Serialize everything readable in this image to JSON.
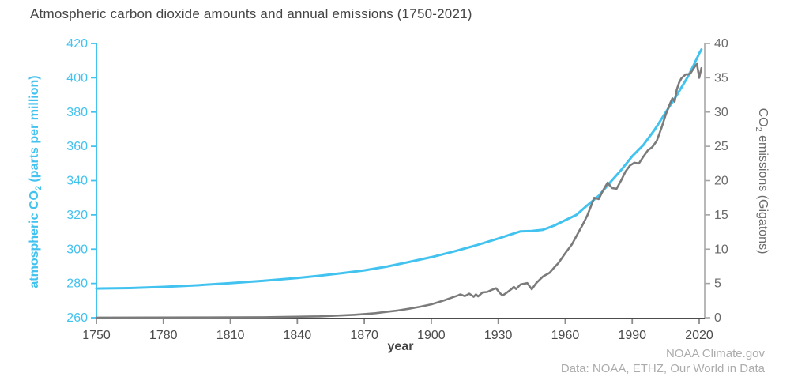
{
  "attribution": {
    "line1": "NOAA Climate.gov",
    "line2": "Data: NOAA, ETHZ, Our World in Data"
  },
  "colors": {
    "blue": "#41c2ef",
    "gray_line": "#7b7b7b",
    "title": "#454545",
    "x_spine": "#4c4c4c",
    "x_tick": "#8c8c8c",
    "x_tick_label": "#4b4b4b",
    "right_spine": "#a6a6a6",
    "right_tick_label": "#6a6a6a",
    "attribution": "#acacac"
  },
  "chart_data": {
    "type": "line",
    "title": "Atmospheric carbon dioxide amounts and annual emissions (1750-2021)",
    "xlabel": "year",
    "grid": false,
    "legend": "none",
    "x_ticks": [
      1750,
      1780,
      1810,
      1840,
      1870,
      1900,
      1930,
      1960,
      1990,
      2020
    ],
    "x_tick_range": [
      1750,
      2020
    ],
    "x_range": [
      1750,
      2021
    ],
    "left_axis": {
      "label_pre": "atmospheric CO",
      "label_sub": "2",
      "label_post": " (parts per million)",
      "ticks": [
        260,
        280,
        300,
        320,
        340,
        360,
        380,
        400,
        420
      ],
      "range": [
        260,
        420
      ],
      "color": "#41c2ef"
    },
    "right_axis": {
      "label_pre": "CO",
      "label_sub": "2",
      "label_post": " emissions (Gigatons)",
      "ticks": [
        0,
        5,
        10,
        15,
        20,
        25,
        30,
        35,
        40
      ],
      "range": [
        0,
        40
      ],
      "color": "#6a6a6a"
    },
    "series": [
      {
        "id": "atmospheric-co2",
        "name": "atmospheric CO2 (parts per million)",
        "axis": "left",
        "color": "#41c2ef",
        "points": [
          [
            1750,
            277.0
          ],
          [
            1765,
            277.3
          ],
          [
            1780,
            278.0
          ],
          [
            1795,
            278.9
          ],
          [
            1810,
            280.2
          ],
          [
            1825,
            281.6
          ],
          [
            1840,
            283.2
          ],
          [
            1850,
            284.5
          ],
          [
            1860,
            286.0
          ],
          [
            1870,
            287.6
          ],
          [
            1880,
            289.8
          ],
          [
            1890,
            292.5
          ],
          [
            1900,
            295.3
          ],
          [
            1910,
            298.6
          ],
          [
            1920,
            302.2
          ],
          [
            1930,
            306.2
          ],
          [
            1935,
            308.3
          ],
          [
            1940,
            310.4
          ],
          [
            1945,
            310.6
          ],
          [
            1950,
            311.3
          ],
          [
            1955,
            313.7
          ],
          [
            1960,
            316.9
          ],
          [
            1965,
            320.0
          ],
          [
            1970,
            325.7
          ],
          [
            1975,
            331.1
          ],
          [
            1980,
            338.8
          ],
          [
            1985,
            346.1
          ],
          [
            1990,
            354.2
          ],
          [
            1995,
            360.8
          ],
          [
            2000,
            369.6
          ],
          [
            2005,
            379.8
          ],
          [
            2010,
            389.9
          ],
          [
            2015,
            400.8
          ],
          [
            2018,
            408.5
          ],
          [
            2020,
            414.2
          ],
          [
            2021,
            416.5
          ]
        ]
      },
      {
        "id": "co2-emissions",
        "name": "CO2 emissions (Gigatons)",
        "axis": "right",
        "color": "#7b7b7b",
        "points": [
          [
            1750,
            0.01
          ],
          [
            1775,
            0.02
          ],
          [
            1800,
            0.03
          ],
          [
            1825,
            0.07
          ],
          [
            1850,
            0.2
          ],
          [
            1860,
            0.34
          ],
          [
            1865,
            0.42
          ],
          [
            1870,
            0.53
          ],
          [
            1875,
            0.66
          ],
          [
            1880,
            0.85
          ],
          [
            1885,
            1.05
          ],
          [
            1890,
            1.3
          ],
          [
            1895,
            1.6
          ],
          [
            1900,
            1.95
          ],
          [
            1903,
            2.25
          ],
          [
            1906,
            2.55
          ],
          [
            1909,
            2.9
          ],
          [
            1912,
            3.25
          ],
          [
            1913,
            3.4
          ],
          [
            1915,
            3.15
          ],
          [
            1917,
            3.5
          ],
          [
            1919,
            3.05
          ],
          [
            1920,
            3.4
          ],
          [
            1921,
            3.1
          ],
          [
            1923,
            3.7
          ],
          [
            1925,
            3.75
          ],
          [
            1927,
            4.05
          ],
          [
            1929,
            4.3
          ],
          [
            1931,
            3.5
          ],
          [
            1932,
            3.25
          ],
          [
            1934,
            3.7
          ],
          [
            1936,
            4.2
          ],
          [
            1937,
            4.5
          ],
          [
            1938,
            4.2
          ],
          [
            1940,
            4.85
          ],
          [
            1943,
            5.05
          ],
          [
            1945,
            4.15
          ],
          [
            1947,
            5.05
          ],
          [
            1950,
            6.0
          ],
          [
            1953,
            6.55
          ],
          [
            1955,
            7.3
          ],
          [
            1957,
            8.0
          ],
          [
            1960,
            9.4
          ],
          [
            1963,
            10.7
          ],
          [
            1965,
            11.9
          ],
          [
            1968,
            13.7
          ],
          [
            1970,
            15.0
          ],
          [
            1973,
            17.5
          ],
          [
            1975,
            17.3
          ],
          [
            1977,
            18.6
          ],
          [
            1979,
            19.7
          ],
          [
            1981,
            18.9
          ],
          [
            1983,
            18.8
          ],
          [
            1985,
            20.0
          ],
          [
            1987,
            21.3
          ],
          [
            1989,
            22.2
          ],
          [
            1991,
            22.6
          ],
          [
            1993,
            22.5
          ],
          [
            1995,
            23.5
          ],
          [
            1997,
            24.4
          ],
          [
            1999,
            24.9
          ],
          [
            2001,
            25.8
          ],
          [
            2003,
            27.6
          ],
          [
            2005,
            29.6
          ],
          [
            2007,
            31.3
          ],
          [
            2008,
            32.0
          ],
          [
            2009,
            31.5
          ],
          [
            2010,
            33.3
          ],
          [
            2011,
            34.3
          ],
          [
            2012,
            34.9
          ],
          [
            2013,
            35.2
          ],
          [
            2014,
            35.5
          ],
          [
            2015,
            35.5
          ],
          [
            2016,
            35.6
          ],
          [
            2017,
            36.1
          ],
          [
            2018,
            36.6
          ],
          [
            2019,
            37.0
          ],
          [
            2020,
            35.0
          ],
          [
            2021,
            36.4
          ]
        ]
      }
    ]
  }
}
